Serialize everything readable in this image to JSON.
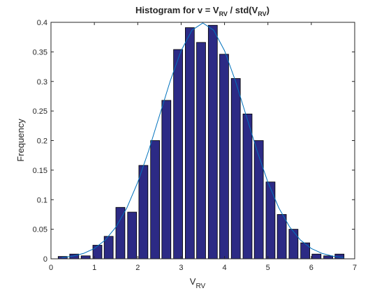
{
  "chart_data": {
    "type": "bar",
    "title": [
      "Histogram for v = V",
      "RV",
      " / std(V",
      "RV",
      ")"
    ],
    "xlabel": [
      "V",
      "RV"
    ],
    "ylabel": "Frequency",
    "x": [
      0.27,
      0.536,
      0.8,
      1.07,
      1.33,
      1.6,
      1.87,
      2.13,
      2.4,
      2.66,
      2.93,
      3.2,
      3.46,
      3.73,
      3.99,
      4.26,
      4.53,
      4.79,
      5.06,
      5.32,
      5.59,
      5.86,
      6.12,
      6.39,
      6.65
    ],
    "values": [
      0.004,
      0.008,
      0.005,
      0.023,
      0.038,
      0.087,
      0.079,
      0.158,
      0.2,
      0.268,
      0.354,
      0.391,
      0.366,
      0.395,
      0.346,
      0.305,
      0.245,
      0.2,
      0.13,
      0.075,
      0.05,
      0.027,
      0.008,
      0.005,
      0.008
    ],
    "color": "#2c2a85",
    "edgecolor": "#000000",
    "line": {
      "type": "line",
      "color": "#0072bd",
      "x": [
        0.25,
        0.5,
        0.75,
        1.0,
        1.25,
        1.5,
        1.75,
        2.0,
        2.25,
        2.5,
        2.75,
        3.0,
        3.25,
        3.5,
        3.75,
        4.0,
        4.25,
        4.5,
        4.75,
        5.0,
        5.25,
        5.5,
        5.75,
        6.0,
        6.25,
        6.5,
        6.75
      ],
      "values": [
        0.002,
        0.0044,
        0.0091,
        0.0175,
        0.0317,
        0.054,
        0.0863,
        0.1295,
        0.1826,
        0.242,
        0.3011,
        0.3521,
        0.3867,
        0.3989,
        0.3867,
        0.3521,
        0.3011,
        0.242,
        0.1826,
        0.1295,
        0.0863,
        0.054,
        0.0317,
        0.0175,
        0.0091,
        0.0044,
        0.002
      ]
    },
    "xlim": [
      0,
      7
    ],
    "ylim": [
      0,
      0.4
    ],
    "xticks": [
      0,
      1,
      2,
      3,
      4,
      5,
      6,
      7
    ],
    "yticks": [
      0,
      0.05,
      0.1,
      0.15,
      0.2,
      0.25,
      0.3,
      0.35,
      0.4
    ]
  }
}
